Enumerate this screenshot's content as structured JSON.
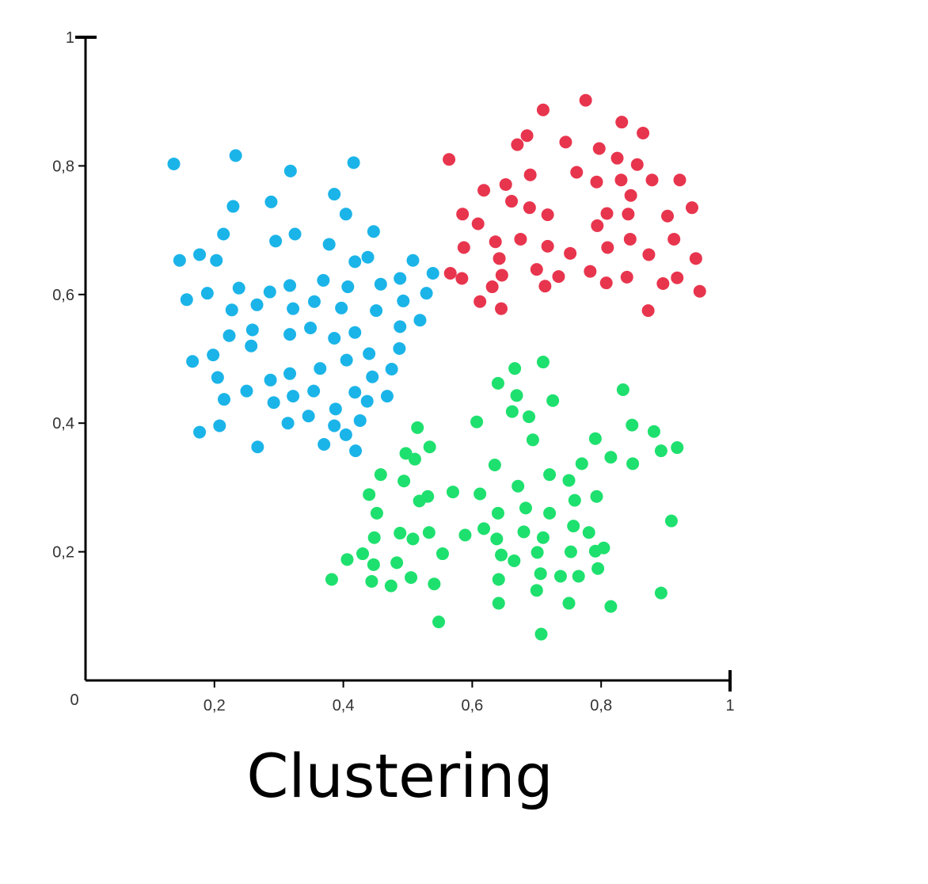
{
  "caption": "Clustering",
  "chart_data": {
    "type": "scatter",
    "title": "",
    "xlabel": "",
    "ylabel": "",
    "xlim": [
      0,
      1
    ],
    "ylim": [
      0,
      1
    ],
    "grid": false,
    "origin_label": "0",
    "x_ticks": [
      {
        "value": 0.2,
        "label": "0,2"
      },
      {
        "value": 0.4,
        "label": "0,4"
      },
      {
        "value": 0.6,
        "label": "0,6"
      },
      {
        "value": 0.8,
        "label": "0,8"
      },
      {
        "value": 1.0,
        "label": "1"
      }
    ],
    "y_ticks": [
      {
        "value": 0.2,
        "label": "0,2"
      },
      {
        "value": 0.4,
        "label": "0,4"
      },
      {
        "value": 0.6,
        "label": "0,6"
      },
      {
        "value": 0.8,
        "label": "0,8"
      },
      {
        "value": 1.0,
        "label": "1"
      }
    ],
    "series": [
      {
        "color": "#1bb4e8",
        "points": [
          [
            0.137,
            0.803
          ],
          [
            0.233,
            0.816
          ],
          [
            0.318,
            0.792
          ],
          [
            0.416,
            0.805
          ],
          [
            0.229,
            0.737
          ],
          [
            0.288,
            0.744
          ],
          [
            0.386,
            0.756
          ],
          [
            0.404,
            0.725
          ],
          [
            0.214,
            0.694
          ],
          [
            0.295,
            0.683
          ],
          [
            0.325,
            0.694
          ],
          [
            0.378,
            0.678
          ],
          [
            0.447,
            0.698
          ],
          [
            0.146,
            0.653
          ],
          [
            0.177,
            0.662
          ],
          [
            0.203,
            0.653
          ],
          [
            0.418,
            0.651
          ],
          [
            0.438,
            0.658
          ],
          [
            0.508,
            0.653
          ],
          [
            0.539,
            0.633
          ],
          [
            0.157,
            0.592
          ],
          [
            0.189,
            0.602
          ],
          [
            0.238,
            0.61
          ],
          [
            0.286,
            0.604
          ],
          [
            0.317,
            0.614
          ],
          [
            0.369,
            0.622
          ],
          [
            0.407,
            0.612
          ],
          [
            0.458,
            0.616
          ],
          [
            0.488,
            0.625
          ],
          [
            0.227,
            0.576
          ],
          [
            0.266,
            0.584
          ],
          [
            0.322,
            0.578
          ],
          [
            0.355,
            0.589
          ],
          [
            0.397,
            0.579
          ],
          [
            0.451,
            0.575
          ],
          [
            0.493,
            0.59
          ],
          [
            0.529,
            0.602
          ],
          [
            0.259,
            0.545
          ],
          [
            0.223,
            0.536
          ],
          [
            0.317,
            0.538
          ],
          [
            0.349,
            0.548
          ],
          [
            0.386,
            0.532
          ],
          [
            0.418,
            0.541
          ],
          [
            0.488,
            0.55
          ],
          [
            0.519,
            0.56
          ],
          [
            0.166,
            0.496
          ],
          [
            0.198,
            0.506
          ],
          [
            0.257,
            0.52
          ],
          [
            0.364,
            0.485
          ],
          [
            0.405,
            0.498
          ],
          [
            0.44,
            0.508
          ],
          [
            0.487,
            0.516
          ],
          [
            0.205,
            0.471
          ],
          [
            0.287,
            0.467
          ],
          [
            0.317,
            0.477
          ],
          [
            0.445,
            0.472
          ],
          [
            0.475,
            0.484
          ],
          [
            0.215,
            0.437
          ],
          [
            0.25,
            0.45
          ],
          [
            0.292,
            0.432
          ],
          [
            0.322,
            0.442
          ],
          [
            0.354,
            0.45
          ],
          [
            0.418,
            0.448
          ],
          [
            0.437,
            0.434
          ],
          [
            0.468,
            0.442
          ],
          [
            0.177,
            0.386
          ],
          [
            0.208,
            0.396
          ],
          [
            0.314,
            0.4
          ],
          [
            0.346,
            0.411
          ],
          [
            0.388,
            0.422
          ],
          [
            0.386,
            0.396
          ],
          [
            0.404,
            0.382
          ],
          [
            0.426,
            0.404
          ],
          [
            0.267,
            0.363
          ],
          [
            0.37,
            0.367
          ],
          [
            0.419,
            0.357
          ]
        ]
      },
      {
        "color": "#e8354e",
        "points": [
          [
            0.776,
            0.902
          ],
          [
            0.71,
            0.887
          ],
          [
            0.832,
            0.868
          ],
          [
            0.865,
            0.851
          ],
          [
            0.685,
            0.847
          ],
          [
            0.745,
            0.837
          ],
          [
            0.797,
            0.827
          ],
          [
            0.564,
            0.81
          ],
          [
            0.67,
            0.833
          ],
          [
            0.825,
            0.812
          ],
          [
            0.856,
            0.802
          ],
          [
            0.762,
            0.79
          ],
          [
            0.69,
            0.786
          ],
          [
            0.652,
            0.771
          ],
          [
            0.793,
            0.775
          ],
          [
            0.831,
            0.778
          ],
          [
            0.879,
            0.778
          ],
          [
            0.618,
            0.762
          ],
          [
            0.922,
            0.778
          ],
          [
            0.846,
            0.754
          ],
          [
            0.661,
            0.745
          ],
          [
            0.689,
            0.735
          ],
          [
            0.717,
            0.724
          ],
          [
            0.585,
            0.725
          ],
          [
            0.809,
            0.726
          ],
          [
            0.842,
            0.725
          ],
          [
            0.903,
            0.722
          ],
          [
            0.941,
            0.735
          ],
          [
            0.609,
            0.71
          ],
          [
            0.794,
            0.707
          ],
          [
            0.587,
            0.673
          ],
          [
            0.636,
            0.682
          ],
          [
            0.675,
            0.686
          ],
          [
            0.717,
            0.675
          ],
          [
            0.874,
            0.662
          ],
          [
            0.913,
            0.686
          ],
          [
            0.845,
            0.686
          ],
          [
            0.81,
            0.673
          ],
          [
            0.752,
            0.664
          ],
          [
            0.642,
            0.656
          ],
          [
            0.947,
            0.656
          ],
          [
            0.566,
            0.633
          ],
          [
            0.584,
            0.625
          ],
          [
            0.646,
            0.63
          ],
          [
            0.7,
            0.639
          ],
          [
            0.734,
            0.628
          ],
          [
            0.783,
            0.636
          ],
          [
            0.84,
            0.627
          ],
          [
            0.918,
            0.626
          ],
          [
            0.631,
            0.612
          ],
          [
            0.713,
            0.613
          ],
          [
            0.808,
            0.618
          ],
          [
            0.896,
            0.617
          ],
          [
            0.953,
            0.605
          ],
          [
            0.612,
            0.589
          ],
          [
            0.645,
            0.578
          ],
          [
            0.873,
            0.575
          ]
        ]
      },
      {
        "color": "#1ee06e",
        "points": [
          [
            0.71,
            0.495
          ],
          [
            0.666,
            0.485
          ],
          [
            0.64,
            0.462
          ],
          [
            0.834,
            0.452
          ],
          [
            0.669,
            0.443
          ],
          [
            0.725,
            0.435
          ],
          [
            0.662,
            0.418
          ],
          [
            0.688,
            0.41
          ],
          [
            0.607,
            0.402
          ],
          [
            0.848,
            0.397
          ],
          [
            0.515,
            0.393
          ],
          [
            0.882,
            0.387
          ],
          [
            0.694,
            0.374
          ],
          [
            0.791,
            0.376
          ],
          [
            0.497,
            0.353
          ],
          [
            0.534,
            0.363
          ],
          [
            0.893,
            0.357
          ],
          [
            0.918,
            0.362
          ],
          [
            0.815,
            0.347
          ],
          [
            0.511,
            0.344
          ],
          [
            0.635,
            0.335
          ],
          [
            0.77,
            0.337
          ],
          [
            0.849,
            0.337
          ],
          [
            0.458,
            0.32
          ],
          [
            0.72,
            0.32
          ],
          [
            0.75,
            0.311
          ],
          [
            0.494,
            0.31
          ],
          [
            0.671,
            0.302
          ],
          [
            0.44,
            0.289
          ],
          [
            0.531,
            0.286
          ],
          [
            0.57,
            0.293
          ],
          [
            0.612,
            0.29
          ],
          [
            0.793,
            0.286
          ],
          [
            0.518,
            0.279
          ],
          [
            0.759,
            0.28
          ],
          [
            0.452,
            0.26
          ],
          [
            0.64,
            0.26
          ],
          [
            0.683,
            0.268
          ],
          [
            0.72,
            0.26
          ],
          [
            0.909,
            0.248
          ],
          [
            0.533,
            0.23
          ],
          [
            0.589,
            0.226
          ],
          [
            0.618,
            0.236
          ],
          [
            0.757,
            0.24
          ],
          [
            0.488,
            0.229
          ],
          [
            0.68,
            0.231
          ],
          [
            0.781,
            0.23
          ],
          [
            0.448,
            0.222
          ],
          [
            0.508,
            0.22
          ],
          [
            0.638,
            0.22
          ],
          [
            0.71,
            0.222
          ],
          [
            0.554,
            0.197
          ],
          [
            0.645,
            0.195
          ],
          [
            0.43,
            0.197
          ],
          [
            0.701,
            0.199
          ],
          [
            0.753,
            0.2
          ],
          [
            0.804,
            0.206
          ],
          [
            0.791,
            0.201
          ],
          [
            0.406,
            0.188
          ],
          [
            0.447,
            0.18
          ],
          [
            0.483,
            0.183
          ],
          [
            0.665,
            0.186
          ],
          [
            0.795,
            0.174
          ],
          [
            0.382,
            0.157
          ],
          [
            0.444,
            0.154
          ],
          [
            0.474,
            0.147
          ],
          [
            0.505,
            0.16
          ],
          [
            0.541,
            0.15
          ],
          [
            0.641,
            0.157
          ],
          [
            0.706,
            0.166
          ],
          [
            0.737,
            0.162
          ],
          [
            0.765,
            0.162
          ],
          [
            0.7,
            0.14
          ],
          [
            0.893,
            0.136
          ],
          [
            0.641,
            0.12
          ],
          [
            0.75,
            0.12
          ],
          [
            0.815,
            0.115
          ],
          [
            0.548,
            0.091
          ],
          [
            0.707,
            0.072
          ]
        ]
      }
    ]
  }
}
